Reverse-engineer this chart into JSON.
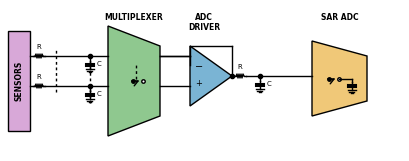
{
  "bg_color": "#ffffff",
  "sensors_color": "#d8a8d8",
  "mux_color": "#8fc88f",
  "driver_color": "#7ab4d4",
  "sar_color": "#f0c878",
  "line_color": "#000000",
  "text_color": "#000000",
  "title_sensors": "SENSORS",
  "title_mux": "MULTIPLEXER",
  "title_driver": "ADC\nDRIVER",
  "title_sar": "SAR ADC",
  "label_R": "R",
  "label_C": "C",
  "label_plus": "+",
  "label_minus": "−"
}
